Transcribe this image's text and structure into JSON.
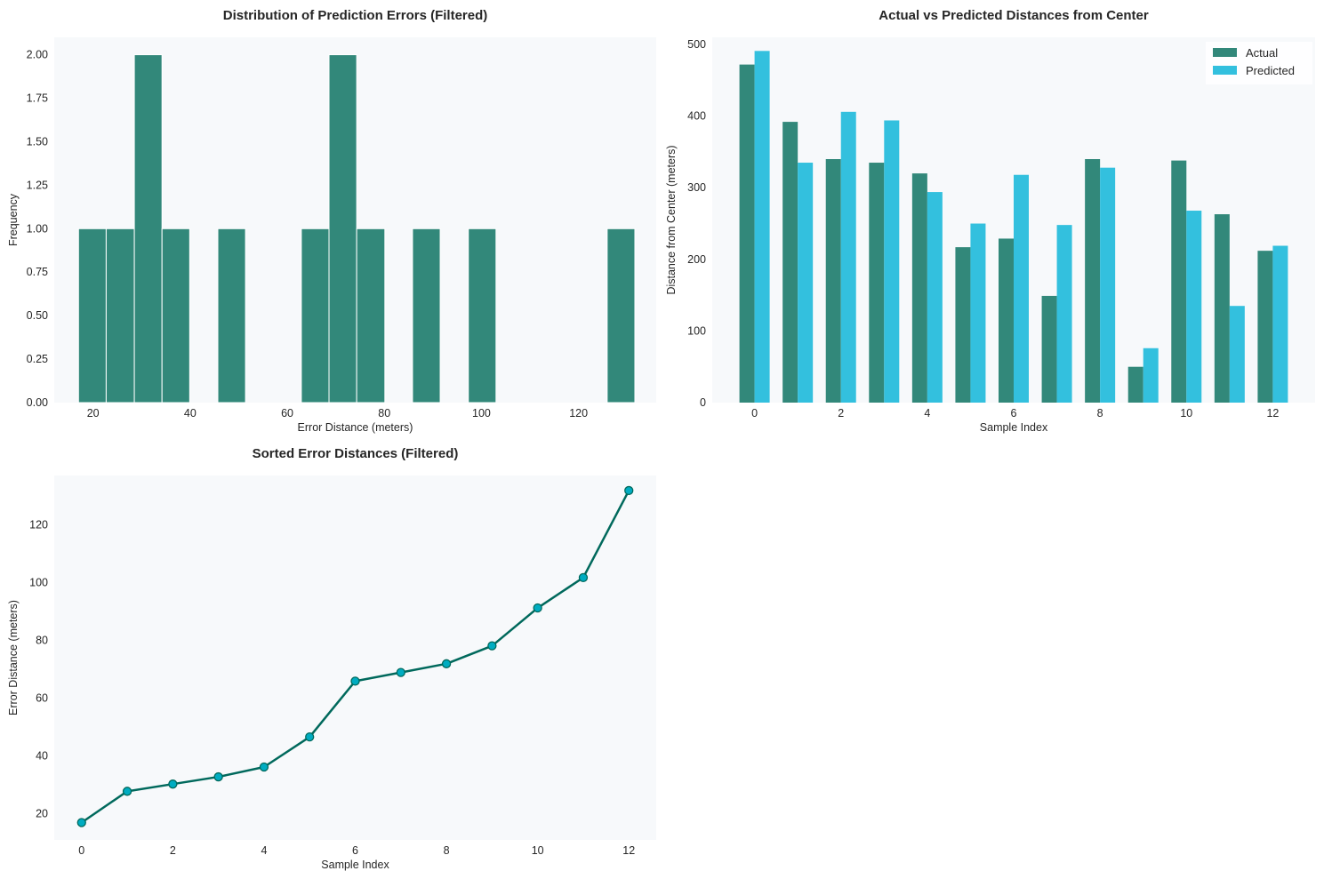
{
  "chart_data": [
    {
      "type": "bar",
      "subtype": "histogram",
      "title": "Distribution of Prediction Errors (Filtered)",
      "xlabel": "Error Distance (meters)",
      "ylabel": "Frequency",
      "xlim": [
        12,
        136
      ],
      "ylim": [
        0,
        2.1
      ],
      "xticks": [
        20,
        40,
        60,
        80,
        100,
        120
      ],
      "yticks": [
        0.0,
        0.25,
        0.5,
        0.75,
        1.0,
        1.25,
        1.5,
        1.75,
        2.0
      ],
      "ytick_labels": [
        "0.00",
        "0.25",
        "0.50",
        "0.75",
        "1.00",
        "1.25",
        "1.50",
        "1.75",
        "2.00"
      ],
      "bins": [
        {
          "start": 17.0,
          "end": 22.7,
          "count": 1
        },
        {
          "start": 22.7,
          "end": 28.5,
          "count": 1
        },
        {
          "start": 28.5,
          "end": 34.2,
          "count": 2
        },
        {
          "start": 34.2,
          "end": 39.9,
          "count": 1
        },
        {
          "start": 45.7,
          "end": 51.4,
          "count": 1
        },
        {
          "start": 62.9,
          "end": 68.6,
          "count": 1
        },
        {
          "start": 68.6,
          "end": 74.3,
          "count": 2
        },
        {
          "start": 74.3,
          "end": 80.1,
          "count": 1
        },
        {
          "start": 85.8,
          "end": 91.5,
          "count": 1
        },
        {
          "start": 97.3,
          "end": 103.0,
          "count": 1
        },
        {
          "start": 125.9,
          "end": 131.6,
          "count": 1
        }
      ],
      "bar_color": "#32887a",
      "grid": false,
      "background": "#f7f9fb"
    },
    {
      "type": "bar",
      "subtype": "grouped",
      "title": "Actual vs Predicted Distances from Center",
      "xlabel": "Sample Index",
      "ylabel": "Distance from Center (meters)",
      "x": [
        0,
        1,
        2,
        3,
        4,
        5,
        6,
        7,
        8,
        9,
        10,
        11,
        12
      ],
      "xticks": [
        0,
        2,
        4,
        6,
        8,
        10,
        12
      ],
      "xlim": [
        -0.98,
        12.98
      ],
      "ylim": [
        0,
        510
      ],
      "yticks": [
        0,
        100,
        200,
        300,
        400,
        500
      ],
      "legend_position": "top-right",
      "series": [
        {
          "name": "Actual",
          "color": "#32887a",
          "values": [
            472,
            392,
            340,
            335,
            320,
            217,
            229,
            149,
            340,
            50,
            338,
            263,
            212
          ]
        },
        {
          "name": "Predicted",
          "color": "#33c0de",
          "values": [
            491,
            335,
            406,
            394,
            294,
            250,
            318,
            248,
            328,
            76,
            268,
            135,
            219
          ]
        }
      ],
      "grid": false,
      "background": "#f7f9fb"
    },
    {
      "type": "line",
      "title": "Sorted Error Distances (Filtered)",
      "xlabel": "Sample Index",
      "ylabel": "Error Distance (meters)",
      "x": [
        0,
        1,
        2,
        3,
        4,
        5,
        6,
        7,
        8,
        9,
        10,
        11,
        12
      ],
      "xticks": [
        0,
        2,
        4,
        6,
        8,
        10,
        12
      ],
      "xlim": [
        -0.6,
        12.6
      ],
      "ylim": [
        11,
        137
      ],
      "yticks": [
        20,
        40,
        60,
        80,
        100,
        120
      ],
      "series": [
        {
          "values": [
            17.0,
            27.8,
            30.3,
            32.8,
            36.2,
            46.6,
            65.9,
            68.9,
            71.9,
            78.1,
            91.2,
            101.7,
            131.8
          ],
          "line_color": "#00695c",
          "marker_color": "#00acc1"
        }
      ],
      "grid": false,
      "background": "#f7f9fb"
    }
  ]
}
